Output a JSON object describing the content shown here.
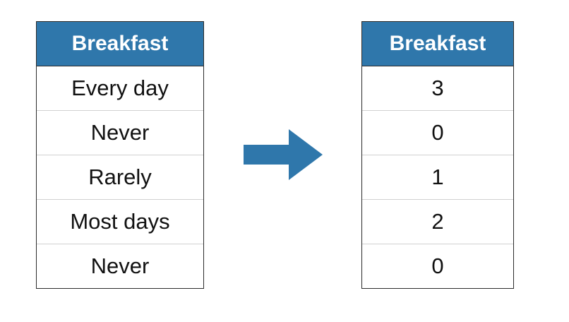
{
  "left_table": {
    "header": "Breakfast",
    "rows": [
      "Every day",
      "Never",
      "Rarely",
      "Most days",
      "Never"
    ]
  },
  "right_table": {
    "header": "Breakfast",
    "rows": [
      "3",
      "0",
      "1",
      "2",
      "0"
    ]
  },
  "arrow": {
    "icon": "right-arrow-icon",
    "color": "#2f77ab"
  },
  "colors": {
    "header_bg": "#2f77ab",
    "header_text": "#ffffff",
    "border": "#2b2b2b"
  }
}
